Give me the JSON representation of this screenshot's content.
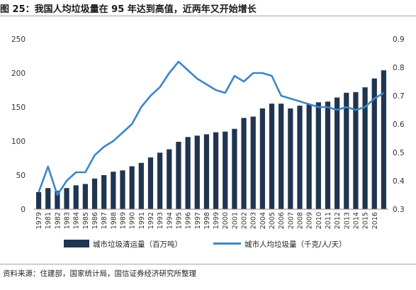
{
  "title": "图 25：我国人均垃圾量在 95 年达到高值，近两年又开始增长",
  "source": "资料来源：住建部，国家统计局，国信证券经济研究所整理",
  "colors": {
    "bar": "#1f3550",
    "line": "#3d86c6"
  },
  "chart_data": {
    "type": "bar",
    "categories": [
      "1979",
      "1980",
      "1981",
      "1982",
      "1983",
      "1984",
      "1985",
      "1986",
      "1987",
      "1988",
      "1989",
      "1990",
      "1991",
      "1992",
      "1993",
      "1994",
      "1995",
      "1996",
      "1997",
      "1998",
      "1999",
      "2000",
      "2001",
      "2002",
      "2003",
      "2004",
      "2005",
      "2006",
      "2007",
      "2008",
      "2009",
      "2010",
      "2011",
      "2012",
      "2013",
      "2014",
      "2015",
      "2016"
    ],
    "x_tick_labels": [
      "1979",
      "1981",
      "1982",
      "1983",
      "1984",
      "1985",
      "1986",
      "1987",
      "1988",
      "1989",
      "1990",
      "1991",
      "1992",
      "1993",
      "1994",
      "1995",
      "1996",
      "1997",
      "1998",
      "1999",
      "2000",
      "2001",
      "2002",
      "2003",
      "2004",
      "2005",
      "2006",
      "2007",
      "2008",
      "2009",
      "2010",
      "2011",
      "2012",
      "2013",
      "2014",
      "2015",
      "2016"
    ],
    "series": [
      {
        "name": "城市垃圾清运量（百万吨）",
        "type": "bar",
        "axis": "left",
        "values": [
          25,
          31,
          27,
          31,
          35,
          37,
          45,
          50,
          55,
          57,
          63,
          68,
          76,
          83,
          88,
          99,
          106,
          108,
          110,
          113,
          114,
          118,
          134,
          136,
          148,
          155,
          155,
          148,
          152,
          154,
          157,
          158,
          164,
          171,
          172,
          179,
          192,
          204
        ]
      },
      {
        "name": "城市人均垃圾量（千克/人/天）",
        "type": "line",
        "axis": "right",
        "values": [
          0.36,
          0.45,
          0.35,
          0.4,
          0.43,
          0.43,
          0.49,
          0.52,
          0.54,
          0.57,
          0.6,
          0.66,
          0.7,
          0.73,
          0.78,
          0.82,
          0.79,
          0.76,
          0.74,
          0.72,
          0.71,
          0.77,
          0.75,
          0.78,
          0.78,
          0.77,
          0.7,
          0.69,
          0.68,
          0.67,
          0.66,
          0.66,
          0.65,
          0.66,
          0.65,
          0.66,
          0.69,
          0.71
        ]
      }
    ],
    "y_left": {
      "ylim": [
        0,
        250
      ],
      "ticks": [
        0,
        50,
        100,
        150,
        200,
        250
      ]
    },
    "y_right": {
      "ylim": [
        0.3,
        0.9
      ],
      "ticks": [
        0.3,
        0.4,
        0.5,
        0.6,
        0.7,
        0.8,
        0.9
      ]
    },
    "grid": false,
    "legend": "bottom"
  }
}
